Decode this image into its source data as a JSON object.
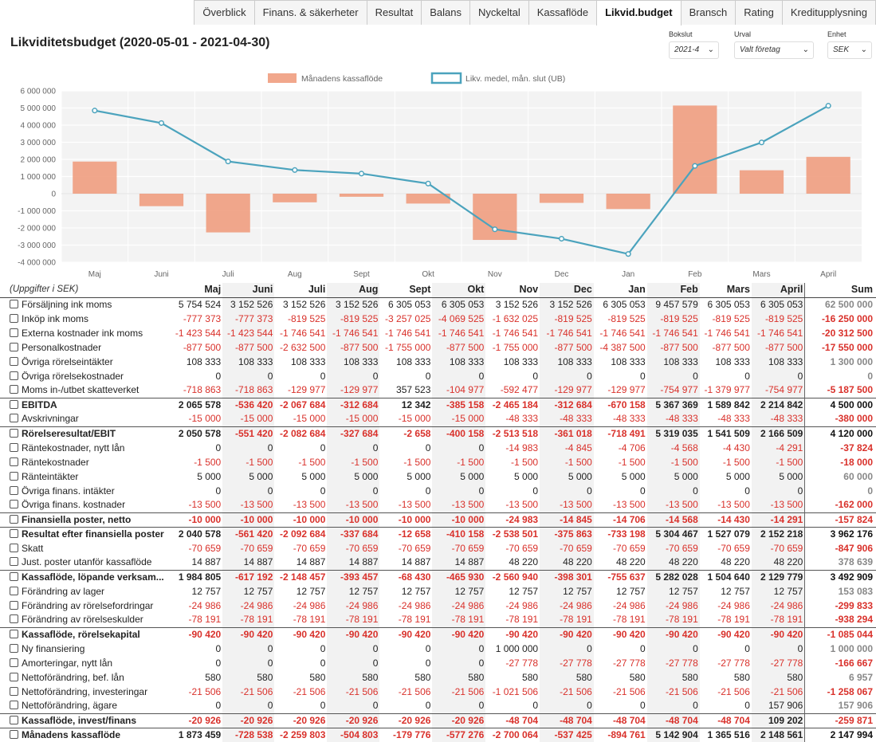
{
  "tabs": [
    {
      "label": "Överblick",
      "name": "tab-overblick",
      "active": false
    },
    {
      "label": "Finans. & säkerheter",
      "name": "tab-finans-sakerheter",
      "active": false
    },
    {
      "label": "Resultat",
      "name": "tab-resultat",
      "active": false
    },
    {
      "label": "Balans",
      "name": "tab-balans",
      "active": false
    },
    {
      "label": "Nyckeltal",
      "name": "tab-nyckeltal",
      "active": false
    },
    {
      "label": "Kassaflöde",
      "name": "tab-kassaflode",
      "active": false
    },
    {
      "label": "Likvid.budget",
      "name": "tab-likvid-budget",
      "active": true
    },
    {
      "label": "Bransch",
      "name": "tab-bransch",
      "active": false
    },
    {
      "label": "Rating",
      "name": "tab-rating",
      "active": false
    },
    {
      "label": "Kreditupplysning",
      "name": "tab-kreditupplysning",
      "active": false
    }
  ],
  "page_title": "Likviditetsbudget (2020-05-01 - 2021-04-30)",
  "controls": {
    "bokslut": {
      "label": "Bokslut",
      "value": "2021-4"
    },
    "urval": {
      "label": "Urval",
      "value": "Valt företag"
    },
    "enhet": {
      "label": "Enhet",
      "value": "SEK"
    }
  },
  "chart_data": {
    "type": "bar",
    "categories": [
      "Maj",
      "Juni",
      "Juli",
      "Aug",
      "Sept",
      "Okt",
      "Nov",
      "Dec",
      "Jan",
      "Feb",
      "Mars",
      "April"
    ],
    "series": [
      {
        "name": "Månadens kassaflöde",
        "kind": "bar",
        "color": "#ee9878",
        "values": [
          1873459,
          -728538,
          -2259803,
          -504803,
          -179776,
          -577276,
          -2700064,
          -537425,
          -894761,
          5142904,
          1365516,
          2148561
        ]
      },
      {
        "name": "Likv. medel, mån. slut (UB)",
        "kind": "line",
        "color": "#4ba3bd",
        "values": [
          4850000,
          4120000,
          1880000,
          1380000,
          1170000,
          590000,
          -2080000,
          -2630000,
          -3520000,
          1620000,
          2990000,
          5130000
        ]
      }
    ],
    "ylim": [
      -4000000,
      6000000
    ],
    "yticks": [
      "6 000 000",
      "5 000 000",
      "4 000 000",
      "3 000 000",
      "2 000 000",
      "1 000 000",
      "0",
      "-1 000 000",
      "-2 000 000",
      "-3 000 000",
      "-4 000 000"
    ],
    "legend_position": "top-center",
    "grid": true
  },
  "table": {
    "unit_label": "(Uppgifter i SEK)",
    "months": [
      "Maj",
      "Juni",
      "Juli",
      "Aug",
      "Sept",
      "Okt",
      "Nov",
      "Dec",
      "Jan",
      "Feb",
      "Mars",
      "April"
    ],
    "sum_label": "Sum",
    "rows": [
      {
        "label": "Försäljning ink moms",
        "values": [
          "5 754 524",
          "3 152 526",
          "3 152 526",
          "3 152 526",
          "6 305 053",
          "6 305 053",
          "3 152 526",
          "3 152 526",
          "6 305 053",
          "9 457 579",
          "6 305 053",
          "6 305 053"
        ],
        "sum": "62 500 000"
      },
      {
        "label": "Inköp ink moms",
        "values": [
          "-777 373",
          "-777 373",
          "-819 525",
          "-819 525",
          "-3 257 025",
          "-4 069 525",
          "-1 632 025",
          "-819 525",
          "-819 525",
          "-819 525",
          "-819 525",
          "-819 525"
        ],
        "sum": "-16 250 000"
      },
      {
        "label": "Externa kostnader ink moms",
        "values": [
          "-1 423 544",
          "-1 423 544",
          "-1 746 541",
          "-1 746 541",
          "-1 746 541",
          "-1 746 541",
          "-1 746 541",
          "-1 746 541",
          "-1 746 541",
          "-1 746 541",
          "-1 746 541",
          "-1 746 541"
        ],
        "sum": "-20 312 500"
      },
      {
        "label": "Personalkostnader",
        "values": [
          "-877 500",
          "-877 500",
          "-2 632 500",
          "-877 500",
          "-1 755 000",
          "-877 500",
          "-1 755 000",
          "-877 500",
          "-4 387 500",
          "-877 500",
          "-877 500",
          "-877 500"
        ],
        "sum": "-17 550 000"
      },
      {
        "label": "Övriga rörelseintäkter",
        "values": [
          "108 333",
          "108 333",
          "108 333",
          "108 333",
          "108 333",
          "108 333",
          "108 333",
          "108 333",
          "108 333",
          "108 333",
          "108 333",
          "108 333"
        ],
        "sum": "1 300 000"
      },
      {
        "label": "Övriga rörelsekostnader",
        "values": [
          "0",
          "0",
          "0",
          "0",
          "0",
          "0",
          "0",
          "0",
          "0",
          "0",
          "0",
          "0"
        ],
        "sum": "0"
      },
      {
        "label": "Moms in-/utbet skatteverket",
        "values": [
          "-718 863",
          "-718 863",
          "-129 977",
          "-129 977",
          "357 523",
          "-104 977",
          "-592 477",
          "-129 977",
          "-129 977",
          "-754 977",
          "-1 379 977",
          "-754 977"
        ],
        "sum": "-5 187 500"
      },
      {
        "label": "EBITDA",
        "bold": true,
        "sep": true,
        "values": [
          "2 065 578",
          "-536 420",
          "-2 067 684",
          "-312 684",
          "12 342",
          "-385 158",
          "-2 465 184",
          "-312 684",
          "-670 158",
          "5 367 369",
          "1 589 842",
          "2 214 842"
        ],
        "sum": "4 500 000"
      },
      {
        "label": "Avskrivningar",
        "values": [
          "-15 000",
          "-15 000",
          "-15 000",
          "-15 000",
          "-15 000",
          "-15 000",
          "-48 333",
          "-48 333",
          "-48 333",
          "-48 333",
          "-48 333",
          "-48 333"
        ],
        "sum": "-380 000"
      },
      {
        "label": "Rörelseresultat/EBIT",
        "bold": true,
        "sep": true,
        "values": [
          "2 050 578",
          "-551 420",
          "-2 082 684",
          "-327 684",
          "-2 658",
          "-400 158",
          "-2 513 518",
          "-361 018",
          "-718 491",
          "5 319 035",
          "1 541 509",
          "2 166 509"
        ],
        "sum": "4 120 000"
      },
      {
        "label": "Räntekostnader, nytt lån",
        "values": [
          "0",
          "0",
          "0",
          "0",
          "0",
          "0",
          "-14 983",
          "-4 845",
          "-4 706",
          "-4 568",
          "-4 430",
          "-4 291"
        ],
        "sum": "-37 824"
      },
      {
        "label": "Räntekostnader",
        "values": [
          "-1 500",
          "-1 500",
          "-1 500",
          "-1 500",
          "-1 500",
          "-1 500",
          "-1 500",
          "-1 500",
          "-1 500",
          "-1 500",
          "-1 500",
          "-1 500"
        ],
        "sum": "-18 000"
      },
      {
        "label": "Ränteintäkter",
        "values": [
          "5 000",
          "5 000",
          "5 000",
          "5 000",
          "5 000",
          "5 000",
          "5 000",
          "5 000",
          "5 000",
          "5 000",
          "5 000",
          "5 000"
        ],
        "sum": "60 000"
      },
      {
        "label": "Övriga finans. intäkter",
        "values": [
          "0",
          "0",
          "0",
          "0",
          "0",
          "0",
          "0",
          "0",
          "0",
          "0",
          "0",
          "0"
        ],
        "sum": "0"
      },
      {
        "label": "Övriga finans. kostnader",
        "values": [
          "-13 500",
          "-13 500",
          "-13 500",
          "-13 500",
          "-13 500",
          "-13 500",
          "-13 500",
          "-13 500",
          "-13 500",
          "-13 500",
          "-13 500",
          "-13 500"
        ],
        "sum": "-162 000"
      },
      {
        "label": "Finansiella poster, netto",
        "bold": true,
        "sep": true,
        "values": [
          "-10 000",
          "-10 000",
          "-10 000",
          "-10 000",
          "-10 000",
          "-10 000",
          "-24 983",
          "-14 845",
          "-14 706",
          "-14 568",
          "-14 430",
          "-14 291"
        ],
        "sum": "-157 824"
      },
      {
        "label": "Resultat efter finansiella poster",
        "bold": true,
        "sep": true,
        "values": [
          "2 040 578",
          "-561 420",
          "-2 092 684",
          "-337 684",
          "-12 658",
          "-410 158",
          "-2 538 501",
          "-375 863",
          "-733 198",
          "5 304 467",
          "1 527 079",
          "2 152 218"
        ],
        "sum": "3 962 176"
      },
      {
        "label": "Skatt",
        "values": [
          "-70 659",
          "-70 659",
          "-70 659",
          "-70 659",
          "-70 659",
          "-70 659",
          "-70 659",
          "-70 659",
          "-70 659",
          "-70 659",
          "-70 659",
          "-70 659"
        ],
        "sum": "-847 906"
      },
      {
        "label": "Just. poster utanför kassaflöde",
        "values": [
          "14 887",
          "14 887",
          "14 887",
          "14 887",
          "14 887",
          "14 887",
          "48 220",
          "48 220",
          "48 220",
          "48 220",
          "48 220",
          "48 220"
        ],
        "sum": "378 639"
      },
      {
        "label": "Kassaflöde, löpande verksam...",
        "bold": true,
        "sep": true,
        "values": [
          "1 984 805",
          "-617 192",
          "-2 148 457",
          "-393 457",
          "-68 430",
          "-465 930",
          "-2 560 940",
          "-398 301",
          "-755 637",
          "5 282 028",
          "1 504 640",
          "2 129 779"
        ],
        "sum": "3 492 909"
      },
      {
        "label": "Förändring av lager",
        "values": [
          "12 757",
          "12 757",
          "12 757",
          "12 757",
          "12 757",
          "12 757",
          "12 757",
          "12 757",
          "12 757",
          "12 757",
          "12 757",
          "12 757"
        ],
        "sum": "153 083"
      },
      {
        "label": "Förändring av rörelsefordringar",
        "values": [
          "-24 986",
          "-24 986",
          "-24 986",
          "-24 986",
          "-24 986",
          "-24 986",
          "-24 986",
          "-24 986",
          "-24 986",
          "-24 986",
          "-24 986",
          "-24 986"
        ],
        "sum": "-299 833"
      },
      {
        "label": "Förändring av rörelseskulder",
        "values": [
          "-78 191",
          "-78 191",
          "-78 191",
          "-78 191",
          "-78 191",
          "-78 191",
          "-78 191",
          "-78 191",
          "-78 191",
          "-78 191",
          "-78 191",
          "-78 191"
        ],
        "sum": "-938 294"
      },
      {
        "label": "Kassaflöde, rörelsekapital",
        "bold": true,
        "sep": true,
        "values": [
          "-90 420",
          "-90 420",
          "-90 420",
          "-90 420",
          "-90 420",
          "-90 420",
          "-90 420",
          "-90 420",
          "-90 420",
          "-90 420",
          "-90 420",
          "-90 420"
        ],
        "sum": "-1 085 044"
      },
      {
        "label": "Ny finansiering",
        "values": [
          "0",
          "0",
          "0",
          "0",
          "0",
          "0",
          "1 000 000",
          "0",
          "0",
          "0",
          "0",
          "0"
        ],
        "sum": "1 000 000"
      },
      {
        "label": "Amorteringar, nytt lån",
        "values": [
          "0",
          "0",
          "0",
          "0",
          "0",
          "0",
          "-27 778",
          "-27 778",
          "-27 778",
          "-27 778",
          "-27 778",
          "-27 778"
        ],
        "sum": "-166 667"
      },
      {
        "label": "Nettoförändring, bef. lån",
        "values": [
          "580",
          "580",
          "580",
          "580",
          "580",
          "580",
          "580",
          "580",
          "580",
          "580",
          "580",
          "580"
        ],
        "sum": "6 957"
      },
      {
        "label": "Nettoförändring, investeringar",
        "values": [
          "-21 506",
          "-21 506",
          "-21 506",
          "-21 506",
          "-21 506",
          "-21 506",
          "-1 021 506",
          "-21 506",
          "-21 506",
          "-21 506",
          "-21 506",
          "-21 506"
        ],
        "sum": "-1 258 067"
      },
      {
        "label": "Nettoförändring, ägare",
        "values": [
          "0",
          "0",
          "0",
          "0",
          "0",
          "0",
          "0",
          "0",
          "0",
          "0",
          "0",
          "157 906"
        ],
        "sum": "157 906"
      },
      {
        "label": "Kassaflöde, invest/finans",
        "bold": true,
        "sep": true,
        "values": [
          "-20 926",
          "-20 926",
          "-20 926",
          "-20 926",
          "-20 926",
          "-20 926",
          "-48 704",
          "-48 704",
          "-48 704",
          "-48 704",
          "-48 704",
          "109 202"
        ],
        "sum": "-259 871"
      },
      {
        "label": "Månadens kassaflöde",
        "bold": true,
        "sep": true,
        "values": [
          "1 873 459",
          "-728 538",
          "-2 259 803",
          "-504 803",
          "-179 776",
          "-577 276",
          "-2 700 064",
          "-537 425",
          "-894 761",
          "5 142 904",
          "1 365 516",
          "2 148 561"
        ],
        "sum": "2 147 994"
      }
    ]
  }
}
